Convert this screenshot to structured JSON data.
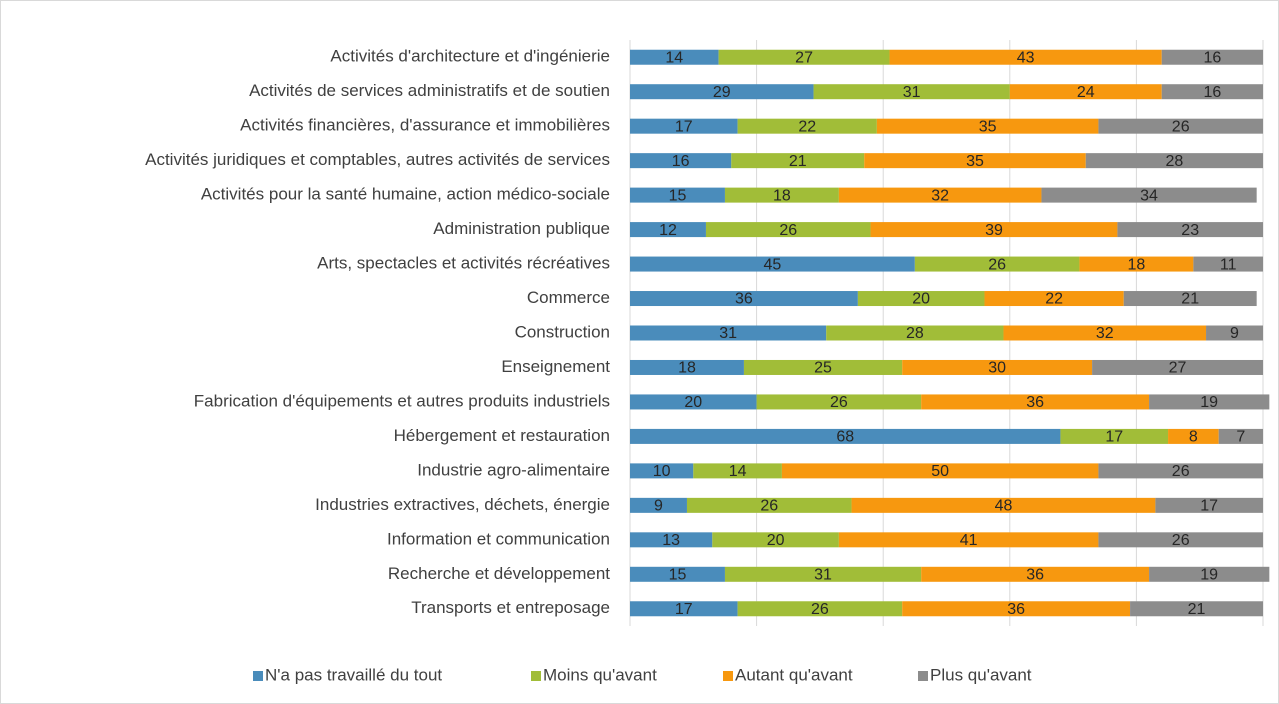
{
  "chart_data": {
    "type": "stacked_barh",
    "categories": [
      "Activités d'architecture et d'ingénierie",
      "Activités de services administratifs et de soutien",
      "Activités financières, d'assurance et immobilières",
      "Activités juridiques et comptables, autres activités de services",
      "Activités pour la santé humaine, action médico-sociale",
      "Administration publique",
      "Arts, spectacles et activités récréatives",
      "Commerce",
      "Construction",
      "Enseignement",
      "Fabrication d'équipements et autres produits industriels",
      "Hébergement et restauration",
      "Industrie agro-alimentaire",
      "Industries extractives, déchets, énergie",
      "Information et communication",
      "Recherche et développement",
      "Transports et entreposage"
    ],
    "series": [
      {
        "name": "N'a pas travaillé du tout",
        "color": "#4a8cbb",
        "values": [
          14,
          29,
          17,
          16,
          15,
          12,
          45,
          36,
          31,
          18,
          20,
          68,
          10,
          9,
          13,
          15,
          17
        ]
      },
      {
        "name": "Moins qu'avant",
        "color": "#a1bd38",
        "values": [
          27,
          31,
          22,
          21,
          18,
          26,
          26,
          20,
          28,
          25,
          26,
          17,
          14,
          26,
          20,
          31,
          26
        ]
      },
      {
        "name": "Autant qu'avant",
        "color": "#f7980f",
        "values": [
          43,
          24,
          35,
          35,
          32,
          39,
          18,
          22,
          32,
          30,
          36,
          8,
          50,
          48,
          41,
          36,
          36
        ]
      },
      {
        "name": "Plus qu'avant",
        "color": "#8c8c8c",
        "values": [
          16,
          16,
          26,
          28,
          34,
          23,
          11,
          21,
          9,
          27,
          19,
          7,
          26,
          17,
          26,
          19,
          21
        ]
      }
    ],
    "xlim": [
      0,
      100
    ],
    "xticks": [
      0,
      20,
      40,
      60,
      80,
      100
    ],
    "grid": true,
    "legend": "bottom"
  }
}
